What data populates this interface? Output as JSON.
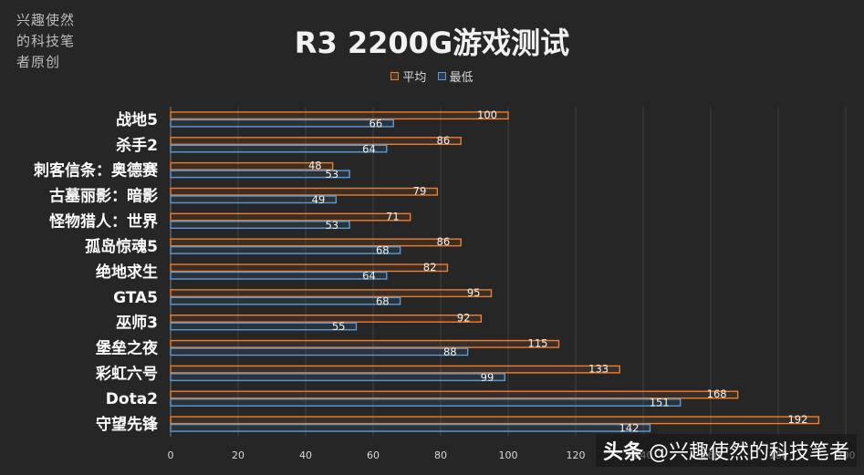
{
  "credit_lines": [
    "兴趣使然",
    "的科技笔",
    "者原创"
  ],
  "watermark": {
    "brand": "头条",
    "handle": "@兴趣使然的科技笔者"
  },
  "colors": {
    "background": "#262626",
    "avg": "#ED7D31",
    "min": "#5B9BD5",
    "grid": "#404040",
    "text": "#d9d9d9"
  },
  "chart_data": {
    "type": "bar",
    "orientation": "horizontal",
    "title": "R3 2200G游戏测试",
    "categories": [
      "战地5",
      "杀手2",
      "刺客信条：奥德赛",
      "古墓丽影：暗影",
      "怪物猎人：世界",
      "孤岛惊魂5",
      "绝地求生",
      "GTA5",
      "巫师3",
      "堡垒之夜",
      "彩虹六号",
      "Dota2",
      "守望先锋"
    ],
    "series": [
      {
        "name": "平均",
        "values": [
          100,
          86,
          48,
          79,
          71,
          86,
          82,
          95,
          92,
          115,
          133,
          168,
          192
        ]
      },
      {
        "name": "最低",
        "values": [
          66,
          64,
          53,
          49,
          53,
          68,
          64,
          68,
          55,
          88,
          99,
          151,
          142
        ]
      }
    ],
    "xlim": [
      0,
      200
    ],
    "xticks": [
      "0",
      "20",
      "40",
      "60",
      "80",
      "100",
      "120",
      "140",
      "160",
      "180",
      "200"
    ],
    "grid": true,
    "legend_position": "top"
  }
}
